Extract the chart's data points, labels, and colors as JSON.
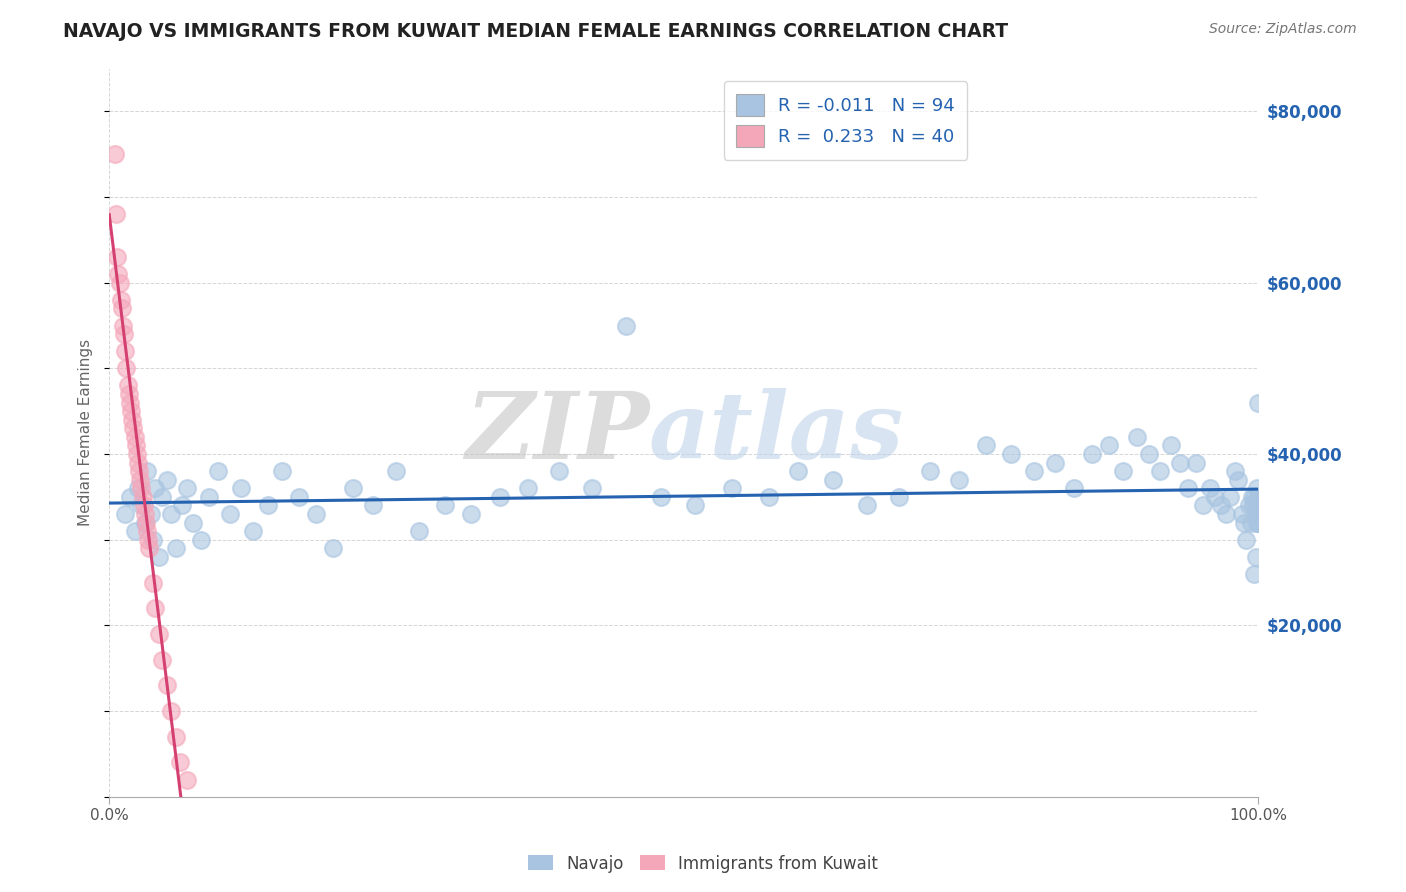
{
  "title": "NAVAJO VS IMMIGRANTS FROM KUWAIT MEDIAN FEMALE EARNINGS CORRELATION CHART",
  "source": "Source: ZipAtlas.com",
  "ylabel": "Median Female Earnings",
  "watermark_zip": "ZIP",
  "watermark_atlas": "atlas",
  "navajo_R": -0.011,
  "navajo_N": 94,
  "kuwait_R": 0.233,
  "kuwait_N": 40,
  "ylim": [
    0,
    85000
  ],
  "xlim": [
    0.0,
    1.0
  ],
  "yticks": [
    0,
    20000,
    40000,
    60000,
    80000
  ],
  "ytick_labels": [
    "",
    "$20,000",
    "$40,000",
    "$60,000",
    "$80,000"
  ],
  "background_color": "#ffffff",
  "grid_color": "#cccccc",
  "navajo_color": "#a8c4e0",
  "navajo_line_color": "#2563b0",
  "kuwait_color": "#f4a7b9",
  "kuwait_line_color": "#d44070",
  "title_color": "#222222",
  "source_color": "#777777",
  "legend_text_color": "#2563b0",
  "yaxis_label_color": "#666666",
  "navajo_x": [
    0.014,
    0.018,
    0.022,
    0.025,
    0.028,
    0.031,
    0.033,
    0.036,
    0.038,
    0.04,
    0.043,
    0.046,
    0.05,
    0.054,
    0.058,
    0.063,
    0.068,
    0.073,
    0.08,
    0.087,
    0.095,
    0.105,
    0.115,
    0.125,
    0.138,
    0.15,
    0.165,
    0.18,
    0.195,
    0.212,
    0.23,
    0.25,
    0.27,
    0.292,
    0.315,
    0.34,
    0.365,
    0.392,
    0.42,
    0.45,
    0.48,
    0.51,
    0.542,
    0.574,
    0.6,
    0.63,
    0.66,
    0.688,
    0.715,
    0.74,
    0.763,
    0.785,
    0.805,
    0.823,
    0.84,
    0.856,
    0.87,
    0.883,
    0.895,
    0.905,
    0.915,
    0.924,
    0.932,
    0.939,
    0.946,
    0.952,
    0.958,
    0.963,
    0.968,
    0.972,
    0.976,
    0.98,
    0.983,
    0.986,
    0.988,
    0.99,
    0.992,
    0.994,
    0.995,
    0.996,
    0.997,
    0.997,
    0.998,
    0.998,
    0.999,
    0.999,
    0.999,
    1.0,
    1.0,
    1.0,
    1.0,
    1.0,
    1.0,
    1.0
  ],
  "navajo_y": [
    33000,
    35000,
    31000,
    36000,
    34000,
    32000,
    38000,
    33000,
    30000,
    36000,
    28000,
    35000,
    37000,
    33000,
    29000,
    34000,
    36000,
    32000,
    30000,
    35000,
    38000,
    33000,
    36000,
    31000,
    34000,
    38000,
    35000,
    33000,
    29000,
    36000,
    34000,
    38000,
    31000,
    34000,
    33000,
    35000,
    36000,
    38000,
    36000,
    55000,
    35000,
    34000,
    36000,
    35000,
    38000,
    37000,
    34000,
    35000,
    38000,
    37000,
    41000,
    40000,
    38000,
    39000,
    36000,
    40000,
    41000,
    38000,
    42000,
    40000,
    38000,
    41000,
    39000,
    36000,
    39000,
    34000,
    36000,
    35000,
    34000,
    33000,
    35000,
    38000,
    37000,
    33000,
    32000,
    30000,
    34000,
    32000,
    35000,
    34000,
    26000,
    35000,
    33000,
    28000,
    34000,
    32000,
    36000,
    34000,
    32000,
    35000,
    33000,
    34000,
    32000,
    46000
  ],
  "kuwait_x": [
    0.005,
    0.006,
    0.007,
    0.008,
    0.009,
    0.01,
    0.011,
    0.012,
    0.013,
    0.014,
    0.015,
    0.016,
    0.017,
    0.018,
    0.019,
    0.02,
    0.021,
    0.022,
    0.023,
    0.024,
    0.025,
    0.026,
    0.027,
    0.028,
    0.029,
    0.03,
    0.031,
    0.032,
    0.033,
    0.034,
    0.035,
    0.038,
    0.04,
    0.043,
    0.046,
    0.05,
    0.054,
    0.058,
    0.062,
    0.068
  ],
  "kuwait_y": [
    75000,
    68000,
    63000,
    61000,
    60000,
    58000,
    57000,
    55000,
    54000,
    52000,
    50000,
    48000,
    47000,
    46000,
    45000,
    44000,
    43000,
    42000,
    41000,
    40000,
    39000,
    38000,
    37000,
    36000,
    35000,
    34000,
    33000,
    32000,
    31000,
    30000,
    29000,
    25000,
    22000,
    19000,
    16000,
    13000,
    10000,
    7000,
    4000,
    2000
  ]
}
